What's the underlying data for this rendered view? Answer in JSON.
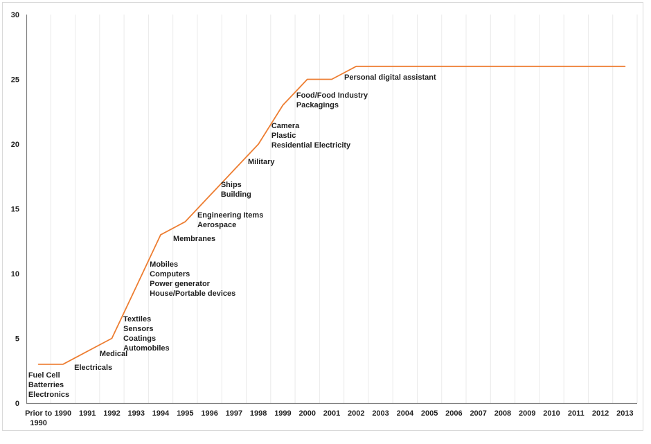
{
  "chart_data": {
    "type": "line",
    "title": "",
    "xlabel": "",
    "ylabel": "",
    "categories": [
      "Prior to\n1990",
      "1990",
      "1991",
      "1992",
      "1993",
      "1994",
      "1995",
      "1996",
      "1997",
      "1998",
      "1999",
      "2000",
      "2001",
      "2002",
      "2003",
      "2004",
      "2005",
      "2006",
      "2007",
      "2008",
      "2009",
      "2010",
      "2011",
      "2012",
      "2013"
    ],
    "values": [
      3,
      3,
      4,
      5,
      9,
      13,
      14,
      16,
      18,
      20,
      23,
      25,
      25,
      26,
      26,
      26,
      26,
      26,
      26,
      26,
      26,
      26,
      26,
      26,
      26
    ],
    "ylim": [
      0,
      30
    ],
    "yticks": [
      0,
      5,
      10,
      15,
      20,
      25,
      30
    ],
    "grid": "vertical-only",
    "legend": "none",
    "colors": {
      "line": "#ED7D31",
      "grid": "#EAEAEA",
      "axis": "#7F7F7F",
      "text": "#1F1F1F",
      "border": "#D9D9D9",
      "background": "#FFFFFF"
    },
    "annotations": [
      {
        "x": -0.42,
        "y": 2.51,
        "lines": [
          "Fuel Cell",
          "Batterries",
          "Electronics"
        ]
      },
      {
        "x": 1.46,
        "y": 3.1,
        "lines": [
          "Electricals"
        ]
      },
      {
        "x": 2.5,
        "y": 4.17,
        "lines": [
          "Medical"
        ]
      },
      {
        "x": 3.47,
        "y": 6.84,
        "lines": [
          "Textiles",
          "Sensors",
          "Coatings",
          "Automobiles"
        ]
      },
      {
        "x": 4.55,
        "y": 11.07,
        "lines": [
          "Mobiles",
          "Computers",
          "Power generator",
          "House/Portable devices"
        ]
      },
      {
        "x": 5.51,
        "y": 13.05,
        "lines": [
          "Membranes"
        ]
      },
      {
        "x": 6.5,
        "y": 14.87,
        "lines": [
          "Engineering Items",
          "Aerospace"
        ]
      },
      {
        "x": 7.46,
        "y": 17.22,
        "lines": [
          "Ships",
          "Building"
        ]
      },
      {
        "x": 8.57,
        "y": 18.98,
        "lines": [
          "Military"
        ]
      },
      {
        "x": 9.53,
        "y": 21.76,
        "lines": [
          "Camera",
          "Plastic",
          "Residential Electricity"
        ]
      },
      {
        "x": 10.55,
        "y": 24.12,
        "lines": [
          "Food/Food Industry",
          "Packagings"
        ]
      },
      {
        "x": 12.51,
        "y": 25.51,
        "lines": [
          "Personal digital assistant"
        ]
      }
    ]
  }
}
